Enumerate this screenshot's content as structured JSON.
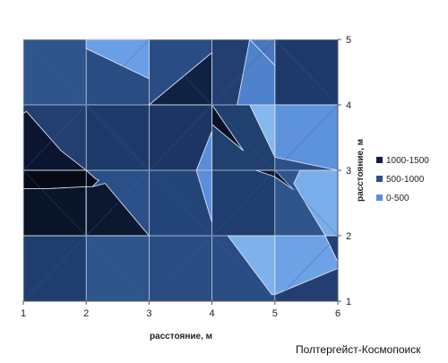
{
  "chart_data": {
    "type": "heatmap",
    "subtype": "filled-contour",
    "title": "",
    "xlabel": "расстояние, м",
    "ylabel": "расстояние, м",
    "x": [
      1,
      2,
      3,
      4,
      5,
      6
    ],
    "y": [
      1,
      2,
      3,
      4,
      5
    ],
    "xlim": [
      1,
      6
    ],
    "ylim": [
      1,
      5
    ],
    "grid": true,
    "legend_position": "right",
    "levels": [
      {
        "name": "1000-1500",
        "color": "#0e1e3e"
      },
      {
        "name": "500-1000",
        "color": "#2c4f86"
      },
      {
        "name": "0-500",
        "color": "#5b8fd8"
      }
    ],
    "regions": [
      {
        "level": "0-500",
        "color": "#6a9ee6",
        "points": [
          [
            2.0,
            4.86
          ],
          [
            2.0,
            5.0
          ],
          [
            3.0,
            5.0
          ],
          [
            3.0,
            4.4
          ]
        ]
      },
      {
        "level": "0-500",
        "color": "#4a78c0",
        "points": [
          [
            4.6,
            5.0
          ],
          [
            5.0,
            5.0
          ],
          [
            5.0,
            4.6
          ]
        ]
      },
      {
        "level": "0-500",
        "color": "#4f82cc",
        "points": [
          [
            4.6,
            5.0
          ],
          [
            5.0,
            4.6
          ],
          [
            5.0,
            4.0
          ],
          [
            4.4,
            4.0
          ]
        ]
      },
      {
        "level": "0-500",
        "color": "#86b8f0",
        "points": [
          [
            4.6,
            4.0
          ],
          [
            5.0,
            4.0
          ],
          [
            5.0,
            3.2
          ]
        ]
      },
      {
        "level": "0-500",
        "color": "#5d92dc",
        "points": [
          [
            5.0,
            4.0
          ],
          [
            6.0,
            4.0
          ],
          [
            6.0,
            3.0
          ],
          [
            5.0,
            3.2
          ]
        ]
      },
      {
        "level": "0-500",
        "color": "#7aaeea",
        "points": [
          [
            5.4,
            3.0
          ],
          [
            6.0,
            3.0
          ],
          [
            6.0,
            2.0
          ],
          [
            5.8,
            2.0
          ],
          [
            5.3,
            2.8
          ]
        ]
      },
      {
        "level": "0-500",
        "color": "#5a8ed8",
        "points": [
          [
            3.75,
            3.0
          ],
          [
            4.0,
            3.6
          ],
          [
            4.0,
            2.2
          ]
        ]
      },
      {
        "level": "0-500",
        "color": "#7fb2ec",
        "points": [
          [
            4.25,
            2.0
          ],
          [
            5.0,
            2.0
          ],
          [
            5.0,
            1.1
          ],
          [
            4.95,
            1.1
          ]
        ]
      },
      {
        "level": "0-500",
        "color": "#6ea2e6",
        "points": [
          [
            5.0,
            2.0
          ],
          [
            5.8,
            2.0
          ],
          [
            6.0,
            1.6
          ],
          [
            6.0,
            1.5
          ],
          [
            5.0,
            1.1
          ]
        ]
      },
      {
        "level": "1000-1500",
        "color": "#050a14",
        "points": [
          [
            1.0,
            3.0
          ],
          [
            2.0,
            3.0
          ],
          [
            2.15,
            2.87
          ],
          [
            2.2,
            2.85
          ],
          [
            2.1,
            2.75
          ],
          [
            1.4,
            2.72
          ],
          [
            1.0,
            2.72
          ]
        ]
      },
      {
        "level": "1000-1500",
        "color": "#0a1428",
        "points": [
          [
            1.0,
            2.72
          ],
          [
            1.4,
            2.72
          ],
          [
            2.0,
            2.75
          ],
          [
            2.0,
            2.0
          ],
          [
            1.0,
            2.0
          ]
        ]
      },
      {
        "level": "1000-1500",
        "color": "#0c1830",
        "points": [
          [
            2.0,
            2.75
          ],
          [
            2.1,
            2.75
          ],
          [
            2.3,
            2.8
          ],
          [
            3.0,
            2.0
          ],
          [
            2.0,
            2.0
          ]
        ]
      },
      {
        "level": "1000-1500",
        "color": "#0b1226",
        "points": [
          [
            4.0,
            4.0
          ],
          [
            4.5,
            3.3
          ],
          [
            4.0,
            3.7
          ]
        ]
      },
      {
        "level": "1000-1500",
        "color": "#0c1530",
        "points": [
          [
            1.0,
            3.87
          ],
          [
            1.05,
            3.9
          ],
          [
            1.6,
            3.3
          ],
          [
            2.0,
            3.0
          ],
          [
            1.0,
            3.0
          ]
        ]
      },
      {
        "level": "1000-1500",
        "color": "#0f2244",
        "points": [
          [
            3.0,
            4.0
          ],
          [
            4.0,
            4.8
          ],
          [
            4.0,
            4.0
          ]
        ]
      },
      {
        "level": "1000-1500",
        "color": "#0a1530",
        "points": [
          [
            4.7,
            3.0
          ],
          [
            5.0,
            3.0
          ],
          [
            5.3,
            2.7
          ],
          [
            5.0,
            2.9
          ]
        ]
      }
    ]
  },
  "watermark": "Полтергейст-Космопоиск"
}
